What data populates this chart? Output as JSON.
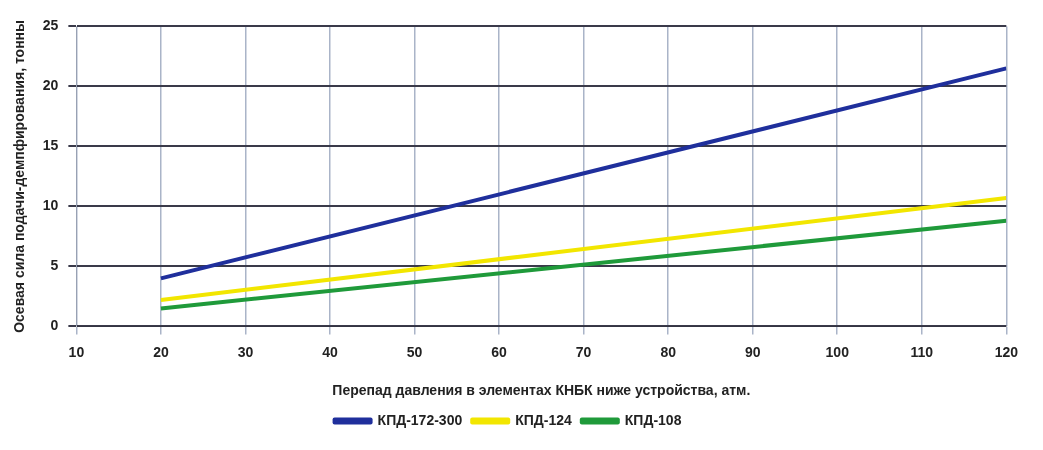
{
  "chart_data": {
    "type": "line",
    "xlabel": "Перепад давления в элементах КНБК ниже устройства, атм.",
    "ylabel": "Осевая сила подачи-демпфирования, тонны",
    "x": [
      20,
      120
    ],
    "xlim": [
      10,
      120
    ],
    "xticks": [
      10,
      20,
      30,
      40,
      50,
      60,
      70,
      80,
      90,
      100,
      110,
      120
    ],
    "ylim": [
      0,
      25
    ],
    "yticks": [
      0,
      5,
      10,
      15,
      20,
      25
    ],
    "grid": true,
    "legend": "bottom",
    "marker": "none",
    "line_style": "solid",
    "series": [
      {
        "name": "КПД-172-300",
        "color": "#1f2f9c",
        "values": [
          4,
          21.5
        ]
      },
      {
        "name": "КПД-124",
        "color": "#f2e600",
        "values": [
          2.2,
          10.7
        ]
      },
      {
        "name": "КПД-108",
        "color": "#1f9a3a",
        "values": [
          1.5,
          8.8
        ]
      }
    ]
  }
}
